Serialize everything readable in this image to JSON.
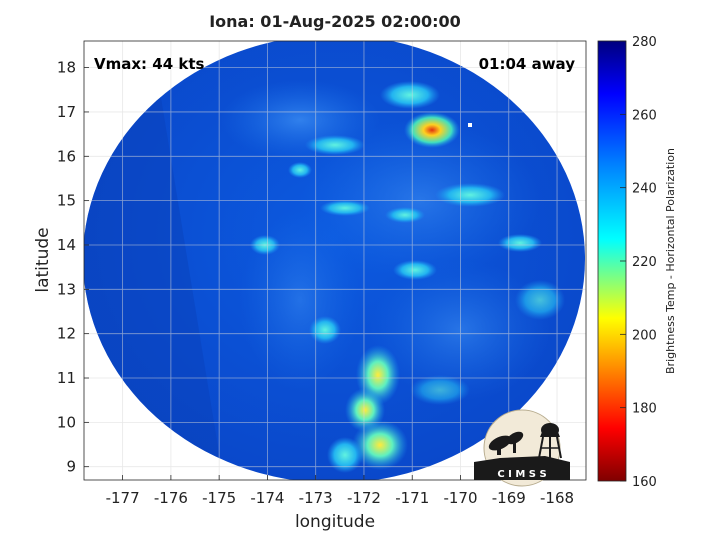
{
  "title": "Iona: 01-Aug-2025 02:00:00",
  "annotations": {
    "vmax": "Vmax: 44 kts",
    "away": "01:04 away"
  },
  "axes": {
    "xlabel": "longitude",
    "ylabel": "latitude",
    "xticks": [
      "-177",
      "-176",
      "-175",
      "-174",
      "-173",
      "-172",
      "-171",
      "-170",
      "-169",
      "-168"
    ],
    "yticks": [
      "9",
      "10",
      "11",
      "12",
      "13",
      "14",
      "15",
      "16",
      "17",
      "18"
    ],
    "xlim": [
      -177.8,
      -167.4
    ],
    "ylim": [
      8.7,
      18.6
    ]
  },
  "colorbar": {
    "label": "Brightness Temp - Horizontal Polarization",
    "ticks": [
      "160",
      "180",
      "200",
      "220",
      "240",
      "260",
      "280"
    ],
    "range": [
      160,
      280
    ],
    "stops": [
      "#7f0000",
      "#ff0000",
      "#ffff00",
      "#00ffff",
      "#0080ff",
      "#0000ff",
      "#00007f"
    ]
  },
  "logo": {
    "text": "C I M S S"
  },
  "colors": {
    "background_field": "#0a54d6",
    "grid": "#d9d9d9"
  }
}
